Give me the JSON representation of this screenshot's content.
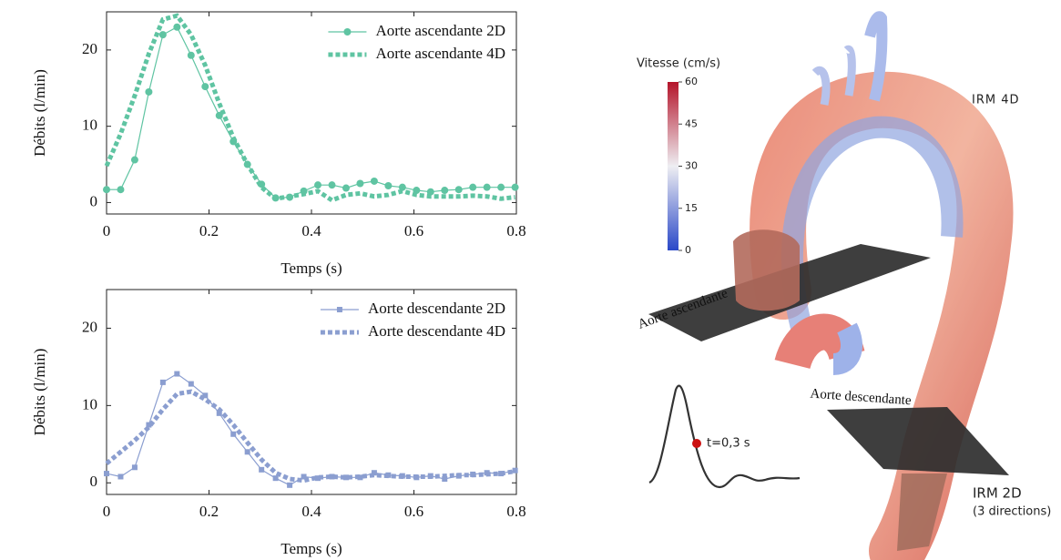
{
  "chart_data": [
    {
      "type": "line",
      "xlabel": "Temps (s)",
      "ylabel": "Débits (l/min)",
      "legend": "upper right",
      "x": [
        0,
        0.0275,
        0.055,
        0.0825,
        0.11,
        0.1375,
        0.165,
        0.1925,
        0.22,
        0.2475,
        0.275,
        0.3025,
        0.33,
        0.3575,
        0.385,
        0.4125,
        0.44,
        0.4675,
        0.495,
        0.5225,
        0.55,
        0.5775,
        0.605,
        0.6325,
        0.66,
        0.6875,
        0.715,
        0.7425,
        0.77,
        0.7975
      ],
      "xlim": [
        0,
        0.8
      ],
      "xticks": [
        0,
        0.2,
        0.4,
        0.6,
        0.8
      ],
      "ylim": [
        -1.5,
        25
      ],
      "yticks": [
        0,
        10,
        20
      ],
      "series": [
        {
          "name": "Aorte ascendante 2D",
          "color": "#5fc4a2",
          "style": "solid",
          "marker": "circle",
          "values": [
            1.7,
            1.7,
            5.6,
            14.5,
            22,
            23,
            19.3,
            15.2,
            11.4,
            8,
            5,
            2.4,
            0.6,
            0.7,
            1.5,
            2.3,
            2.3,
            1.9,
            2.5,
            2.8,
            2.2,
            2,
            1.6,
            1.4,
            1.6,
            1.7,
            2,
            2,
            2,
            2
          ]
        },
        {
          "name": "Aorte ascendante 4D",
          "color": "#5fc4a2",
          "style": "dotted",
          "values": [
            4.8,
            9,
            14,
            19.5,
            24,
            24.5,
            22,
            18,
            13,
            8.5,
            5,
            2,
            0.5,
            0.8,
            1.1,
            1.5,
            0.3,
            1,
            1.2,
            0.8,
            1,
            1.5,
            1,
            0.8,
            0.8,
            0.8,
            0.9,
            0.8,
            0.5,
            0.7
          ]
        }
      ]
    },
    {
      "type": "line",
      "xlabel": "Temps (s)",
      "ylabel": "Débits (l/min)",
      "legend": "upper right",
      "x": [
        0,
        0.0275,
        0.055,
        0.0825,
        0.11,
        0.1375,
        0.165,
        0.1925,
        0.22,
        0.2475,
        0.275,
        0.3025,
        0.33,
        0.3575,
        0.385,
        0.4125,
        0.44,
        0.4675,
        0.495,
        0.5225,
        0.55,
        0.5775,
        0.605,
        0.6325,
        0.66,
        0.6875,
        0.715,
        0.7425,
        0.77,
        0.7975
      ],
      "xlim": [
        0,
        0.8
      ],
      "xticks": [
        0,
        0.2,
        0.4,
        0.6,
        0.8
      ],
      "ylim": [
        -1.5,
        25
      ],
      "yticks": [
        0,
        10,
        20
      ],
      "series": [
        {
          "name": "Aorte descendante 2D",
          "color": "#8b9ed0",
          "style": "solid",
          "marker": "square",
          "values": [
            1.2,
            0.8,
            2,
            7.5,
            13,
            14.1,
            12.8,
            11.3,
            9,
            6.3,
            4,
            1.7,
            0.6,
            -0.3,
            0.8,
            0.6,
            0.8,
            0.7,
            0.7,
            1.3,
            1,
            0.9,
            0.7,
            0.9,
            0.5,
            0.9,
            1.1,
            1.3,
            1.2,
            1.6
          ]
        },
        {
          "name": "Aorte descendante 4D",
          "color": "#8b9ed0",
          "style": "dotted",
          "values": [
            2.5,
            4,
            5.5,
            7.2,
            9.5,
            11.5,
            11.8,
            10.8,
            9.5,
            7.5,
            5.2,
            3,
            1.3,
            0.5,
            0.3,
            0.7,
            0.8,
            0.7,
            0.8,
            1,
            0.9,
            0.8,
            0.8,
            0.8,
            0.9,
            1,
            1,
            1.1,
            1.2,
            1.5
          ]
        }
      ]
    }
  ],
  "illustration": {
    "colorbar": {
      "title": "Vitesse (cm/s)",
      "lim": [
        0,
        60
      ],
      "ticks": [
        0,
        15,
        30,
        45,
        60
      ]
    },
    "label_4d": "IRM 4D",
    "label_ascending": "Aorte ascendante",
    "label_descending": "Aorte descendante",
    "label_time": "t=0,3 s",
    "label_2d": "IRM 2D",
    "label_2d_note": "(3 directions)"
  }
}
